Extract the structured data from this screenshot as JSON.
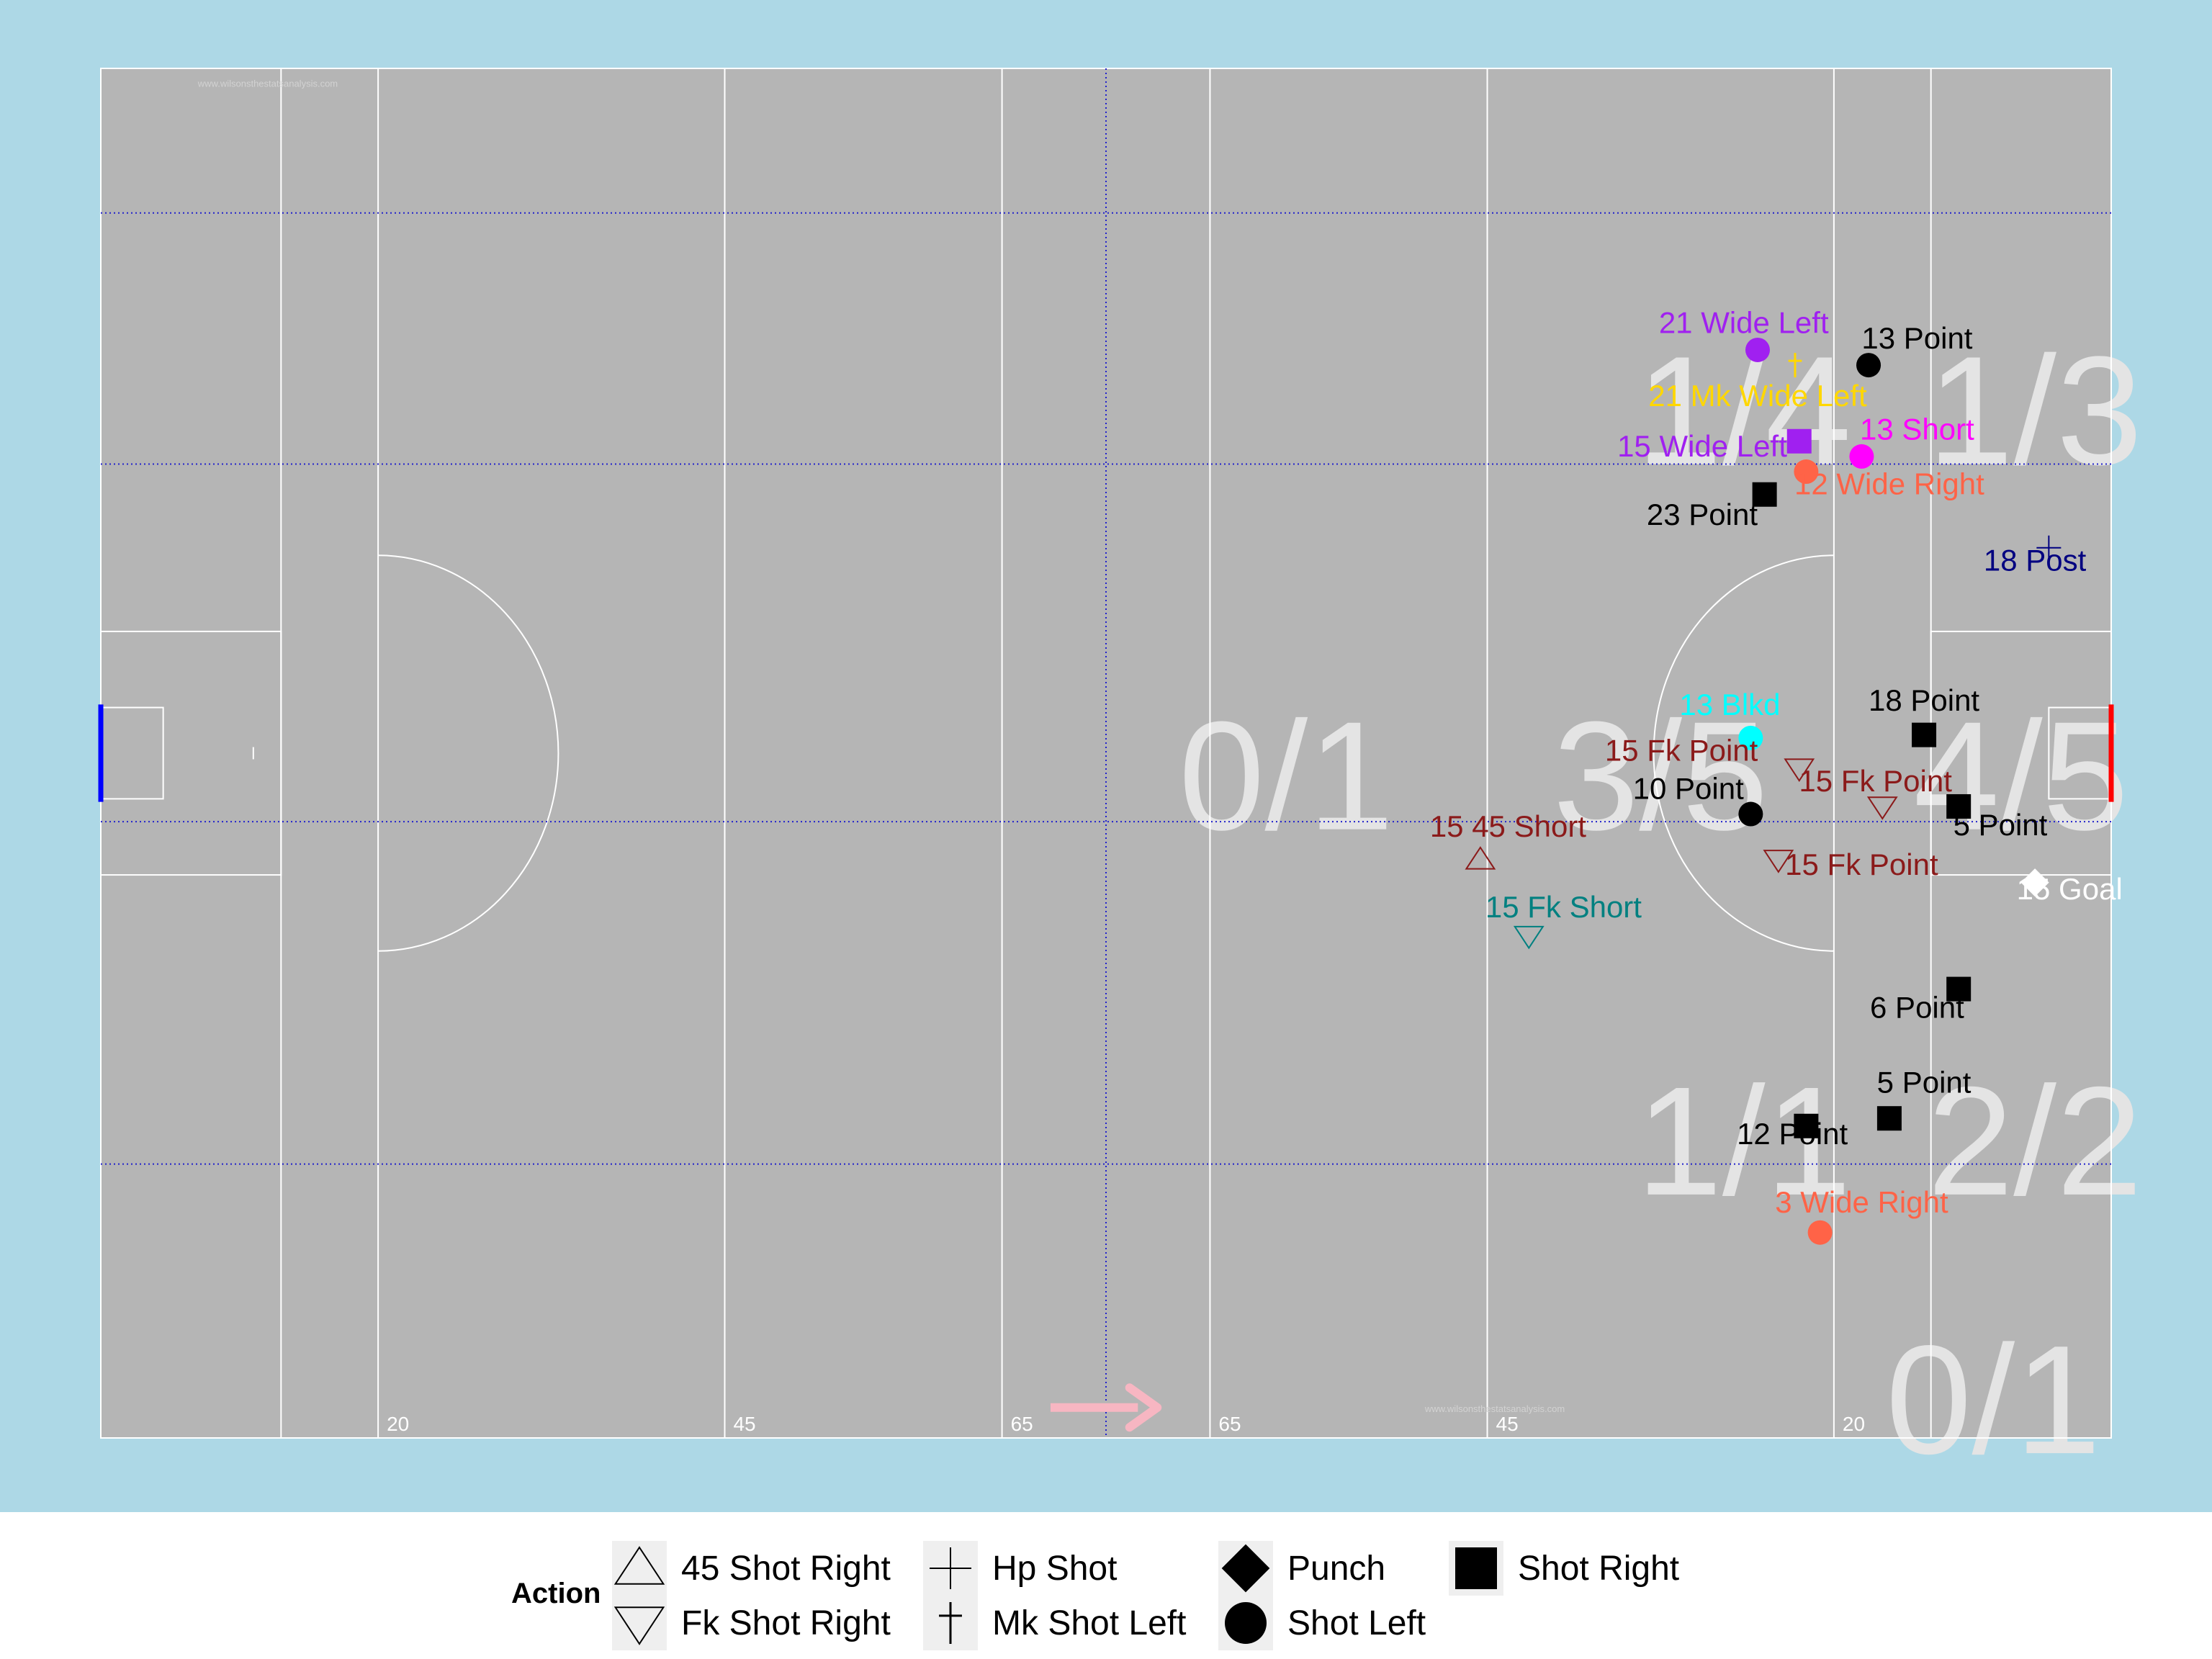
{
  "chart_data": {
    "type": "scatter",
    "x_unit": "metres",
    "xlim": [
      0,
      145
    ],
    "ylim": [
      0,
      90
    ],
    "attack_direction": "right",
    "colors": {
      "background": "#add8e6",
      "pitch": "#b5b5b5",
      "pitch_lines": "#ffffff",
      "zone_lines": "#2222cc",
      "sector_text": "#e4e4e4",
      "arrow": "#f7b6c2",
      "left_goal": "#0000ff",
      "right_goal": "#ff0000"
    },
    "pitch_distance_labels": [
      {
        "x": 20,
        "text": "20"
      },
      {
        "x": 45,
        "text": "45"
      },
      {
        "x": 65,
        "text": "65"
      },
      {
        "x": 80,
        "text": "65"
      },
      {
        "x": 100,
        "text": "45"
      },
      {
        "x": 125,
        "text": "20"
      }
    ],
    "watermarks": [
      "www.wilsonsthestatsanalysis.com",
      "www.wilsonsthestatsanalysis.com"
    ],
    "sector_labels": [
      {
        "text": "1/4",
        "x": 118.5,
        "y": 64
      },
      {
        "text": "1/3",
        "x": 139.5,
        "y": 64
      },
      {
        "text": "0/1",
        "x": 85.5,
        "y": 40
      },
      {
        "text": "3/5",
        "x": 112.5,
        "y": 40
      },
      {
        "text": "4/5",
        "x": 138.5,
        "y": 40
      },
      {
        "text": "1/1",
        "x": 118.5,
        "y": 16
      },
      {
        "text": "2/2",
        "x": 139.5,
        "y": 16
      },
      {
        "text": "0/1",
        "x": 136.5,
        "y": -1
      }
    ],
    "series": [
      {
        "name": "45 Shot Right",
        "shape": "triangle-up",
        "points": [
          {
            "x": 99.5,
            "y": 38.0,
            "label": "15 45 Short",
            "color": "#8b1a1a",
            "lx": 101.5,
            "ly": 39.5
          }
        ]
      },
      {
        "name": "Fk Shot Right",
        "shape": "triangle-down",
        "points": [
          {
            "x": 122.5,
            "y": 44.0,
            "label": "15 Fk Point",
            "color": "#8b1a1a",
            "lx": 114.0,
            "ly": 44.5
          },
          {
            "x": 128.5,
            "y": 41.5,
            "label": "15 Fk Point",
            "color": "#8b1a1a",
            "lx": 128.0,
            "ly": 42.5
          },
          {
            "x": 121.0,
            "y": 38.0,
            "label": "15 Fk Point",
            "color": "#8b1a1a",
            "lx": 127.0,
            "ly": 37.0
          },
          {
            "x": 103.0,
            "y": 33.0,
            "label": "15 Fk Short",
            "color": "#008080",
            "lx": 105.5,
            "ly": 34.2
          }
        ]
      },
      {
        "name": "Hp Shot",
        "shape": "plus",
        "points": [
          {
            "x": 140.5,
            "y": 58.5,
            "label": "18 Post",
            "color": "#000080",
            "lx": 139.5,
            "ly": 57.0
          }
        ]
      },
      {
        "name": "Mk Shot Left",
        "shape": "dagger",
        "points": [
          {
            "x": 122.2,
            "y": 70.5,
            "label": "21 Mk Wide Left",
            "color": "#ffd700",
            "lx": 119.5,
            "ly": 67.8
          }
        ]
      },
      {
        "name": "Punch",
        "shape": "diamond",
        "points": [
          {
            "x": 139.5,
            "y": 36.5,
            "label": "15 Goal",
            "color": "#ffffff",
            "lx": 142.0,
            "ly": 35.4
          }
        ]
      },
      {
        "name": "Shot Left",
        "shape": "circle",
        "points": [
          {
            "x": 119.5,
            "y": 71.5,
            "label": "21 Wide Left",
            "color": "#a020f0",
            "lx": 118.5,
            "ly": 72.6
          },
          {
            "x": 127.5,
            "y": 70.5,
            "label": "13 Point",
            "color": "#000000",
            "lx": 131.0,
            "ly": 71.6
          },
          {
            "x": 127.0,
            "y": 64.5,
            "label": "13 Short",
            "color": "#ff00ff",
            "lx": 131.0,
            "ly": 65.6
          },
          {
            "x": 123.0,
            "y": 63.5,
            "label": "12 Wide Right",
            "color": "#ff6347",
            "lx": 129.0,
            "ly": 62.0
          },
          {
            "x": 119.0,
            "y": 46.0,
            "label": "13 Blkd",
            "color": "#00ffff",
            "lx": 117.5,
            "ly": 47.5
          },
          {
            "x": 119.0,
            "y": 41.0,
            "label": "10 Point",
            "color": "#000000",
            "lx": 114.5,
            "ly": 42.0
          },
          {
            "x": 124.0,
            "y": 13.5,
            "label": "3 Wide Right",
            "color": "#ff6347",
            "lx": 127.0,
            "ly": 14.8
          }
        ]
      },
      {
        "name": "Shot Right",
        "shape": "square",
        "points": [
          {
            "x": 122.5,
            "y": 65.5,
            "label": "15 Wide Left",
            "color": "#a020f0",
            "lx": 115.5,
            "ly": 64.5
          },
          {
            "x": 120.0,
            "y": 62.0,
            "label": "23 Point",
            "color": "#000000",
            "lx": 115.5,
            "ly": 60.0
          },
          {
            "x": 131.5,
            "y": 46.2,
            "label": "18 Point",
            "color": "#000000",
            "lx": 131.5,
            "ly": 47.8
          },
          {
            "x": 134.0,
            "y": 41.5,
            "label": "5 Point",
            "color": "#000000",
            "lx": 137.0,
            "ly": 39.6
          },
          {
            "x": 134.0,
            "y": 29.5,
            "label": "6 Point",
            "color": "#000000",
            "lx": 131.0,
            "ly": 27.6
          },
          {
            "x": 129.0,
            "y": 21.0,
            "label": "5 Point",
            "color": "#000000",
            "lx": 131.5,
            "ly": 22.7
          },
          {
            "x": 123.0,
            "y": 20.5,
            "label": "12 Point",
            "color": "#000000",
            "lx": 122.0,
            "ly": 19.3
          }
        ]
      }
    ],
    "legend": {
      "title": "Action",
      "placement": "bottom",
      "items": [
        "45 Shot Right",
        "Fk Shot Right",
        "Hp Shot",
        "Mk Shot Left",
        "Punch",
        "Shot Left",
        "Shot Right"
      ]
    }
  }
}
